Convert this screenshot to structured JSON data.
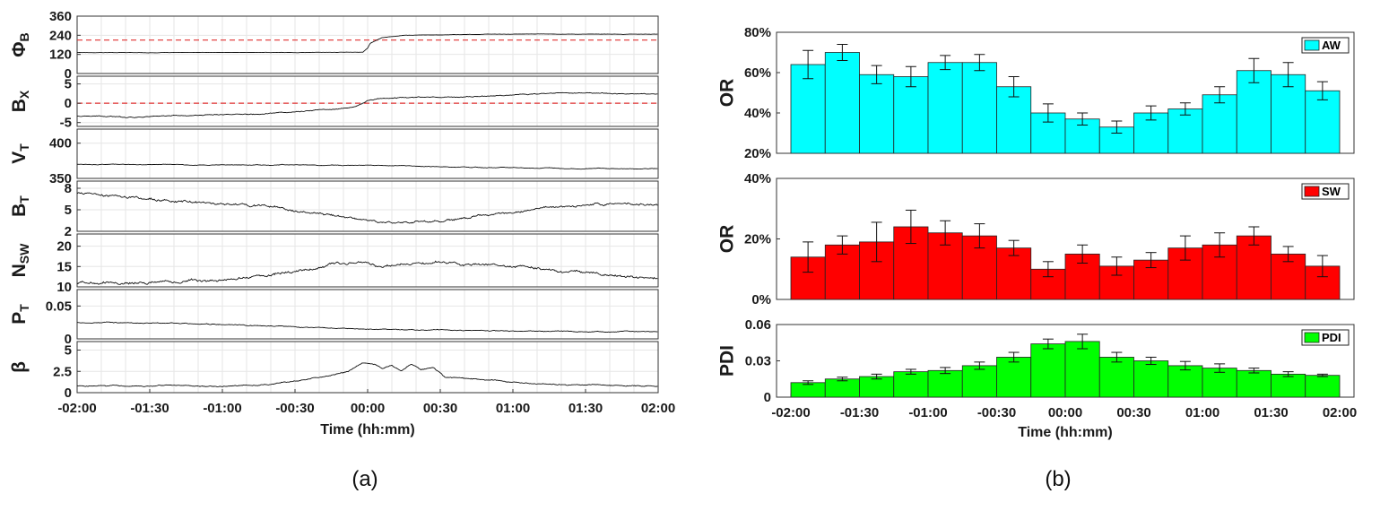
{
  "panel_labels": [
    "(a)",
    "(b)"
  ],
  "chart_data": [
    {
      "type": "line",
      "panel": "(a)",
      "xlabel": "Time (hh:mm)",
      "x_range_minutes": [
        -120,
        120
      ],
      "x_ticks": [
        "-02:00",
        "-01:30",
        "-01:00",
        "-00:30",
        "00:00",
        "00:30",
        "01:00",
        "01:30",
        "02:00"
      ],
      "grid": true,
      "subplots": [
        {
          "ylabel": "Φ",
          "ysub": "B",
          "ylim": [
            0,
            360
          ],
          "yticks": [
            "0",
            "120",
            "240",
            "360"
          ],
          "ref_line": 210,
          "ref_color": "#e03030",
          "values": [
            [
              -120,
              132
            ],
            [
              -90,
              131
            ],
            [
              -60,
              132
            ],
            [
              -30,
              132
            ],
            [
              -2,
              134
            ],
            [
              0,
              160
            ],
            [
              1,
              190
            ],
            [
              3,
              205
            ],
            [
              6,
              225
            ],
            [
              15,
              240
            ],
            [
              40,
              245
            ],
            [
              70,
              248
            ],
            [
              100,
              246
            ],
            [
              120,
              247
            ]
          ]
        },
        {
          "ylabel": "B",
          "ysub": "X",
          "ylim": [
            -6,
            7
          ],
          "yticks": [
            "-5",
            "0",
            "5"
          ],
          "ref_line": 0,
          "ref_color": "#e03030",
          "values": [
            [
              -120,
              -3.3
            ],
            [
              -100,
              -3.6
            ],
            [
              -80,
              -3.2
            ],
            [
              -60,
              -3.0
            ],
            [
              -40,
              -2.5
            ],
            [
              -20,
              -1.8
            ],
            [
              -5,
              -1.0
            ],
            [
              0,
              0.6
            ],
            [
              5,
              1.2
            ],
            [
              20,
              1.6
            ],
            [
              40,
              1.6
            ],
            [
              60,
              2.2
            ],
            [
              80,
              2.6
            ],
            [
              100,
              2.6
            ],
            [
              120,
              2.3
            ]
          ]
        },
        {
          "ylabel": "V",
          "ysub": "T",
          "ylim": [
            350,
            420
          ],
          "yticks": [
            "350",
            "400"
          ],
          "ref_line": null,
          "values": [
            [
              -120,
              370
            ],
            [
              -90,
              369.5
            ],
            [
              -60,
              369
            ],
            [
              -30,
              369.5
            ],
            [
              -10,
              368.5
            ],
            [
              15,
              368
            ],
            [
              35,
              366
            ],
            [
              70,
              365
            ],
            [
              100,
              364
            ],
            [
              120,
              364
            ]
          ]
        },
        {
          "ylabel": "B",
          "ysub": "T",
          "ylim": [
            2,
            9
          ],
          "yticks": [
            "2",
            "5",
            "8"
          ],
          "ref_line": null,
          "values": [
            [
              -120,
              7.3
            ],
            [
              -100,
              6.8
            ],
            [
              -80,
              6.2
            ],
            [
              -60,
              5.8
            ],
            [
              -40,
              5.5
            ],
            [
              -30,
              4.8
            ],
            [
              -15,
              4.2
            ],
            [
              0,
              3.5
            ],
            [
              15,
              3.2
            ],
            [
              30,
              3.4
            ],
            [
              50,
              4.2
            ],
            [
              75,
              5.2
            ],
            [
              100,
              5.9
            ],
            [
              120,
              5.7
            ]
          ]
        },
        {
          "ylabel": "N",
          "ysub": "SW",
          "ylim": [
            10,
            23
          ],
          "yticks": [
            "10",
            "15",
            "20"
          ],
          "ref_line": null,
          "values": [
            [
              -120,
              11
            ],
            [
              -90,
              11.2
            ],
            [
              -60,
              11.8
            ],
            [
              -40,
              12.8
            ],
            [
              -20,
              15
            ],
            [
              -5,
              15.8
            ],
            [
              0,
              16
            ],
            [
              5,
              14.8
            ],
            [
              15,
              15.8
            ],
            [
              30,
              16
            ],
            [
              45,
              15.5
            ],
            [
              60,
              15.2
            ],
            [
              80,
              14
            ],
            [
              100,
              13
            ],
            [
              120,
              12
            ]
          ]
        },
        {
          "ylabel": "P",
          "ysub": "T",
          "ylim": [
            0,
            0.075
          ],
          "yticks": [
            "0",
            "0.05"
          ],
          "ref_line": null,
          "values": [
            [
              -120,
              0.025
            ],
            [
              -90,
              0.024
            ],
            [
              -60,
              0.022
            ],
            [
              -30,
              0.018
            ],
            [
              0,
              0.015
            ],
            [
              30,
              0.013
            ],
            [
              60,
              0.012
            ],
            [
              90,
              0.011
            ],
            [
              120,
              0.011
            ]
          ]
        },
        {
          "ylabel": "β",
          "ysub": "",
          "ylim": [
            0,
            6
          ],
          "yticks": [
            "0",
            "2.5",
            "5"
          ],
          "ref_line": null,
          "values": [
            [
              -120,
              0.8
            ],
            [
              -90,
              0.8
            ],
            [
              -60,
              0.8
            ],
            [
              -40,
              1.0
            ],
            [
              -20,
              1.8
            ],
            [
              -8,
              2.4
            ],
            [
              -2,
              3.5
            ],
            [
              3,
              3.3
            ],
            [
              6,
              2.8
            ],
            [
              10,
              3.2
            ],
            [
              14,
              2.6
            ],
            [
              18,
              3.3
            ],
            [
              22,
              2.7
            ],
            [
              27,
              3.0
            ],
            [
              32,
              1.8
            ],
            [
              45,
              1.6
            ],
            [
              60,
              1.2
            ],
            [
              90,
              0.9
            ],
            [
              120,
              0.8
            ]
          ]
        }
      ]
    },
    {
      "type": "bar",
      "panel": "(b)",
      "xlabel": "Time (hh:mm)",
      "x_range_minutes": [
        -120,
        120
      ],
      "x_ticks": [
        "-02:00",
        "-01:30",
        "-01:00",
        "-00:30",
        "00:00",
        "00:30",
        "01:00",
        "01:30",
        "02:00"
      ],
      "bin_centers_minutes": [
        -112.5,
        -97.5,
        -82.5,
        -67.5,
        -52.5,
        -37.5,
        -22.5,
        -7.5,
        7.5,
        22.5,
        37.5,
        52.5,
        67.5,
        82.5,
        97.5,
        112.5
      ],
      "subplots": [
        {
          "ylabel": "OR",
          "legend": "AW",
          "color": "#00ffff",
          "ylim": [
            20,
            80
          ],
          "yticks": [
            "20%",
            "40%",
            "60%",
            "80%"
          ],
          "values": [
            64,
            70,
            59,
            58,
            65,
            65,
            53,
            40,
            37,
            33,
            40,
            42,
            49,
            61,
            59,
            51
          ],
          "errors": [
            7,
            4,
            4.5,
            5,
            3.5,
            4,
            5,
            4.5,
            3,
            3,
            3.5,
            3,
            4,
            6,
            6,
            4.5
          ]
        },
        {
          "ylabel": "OR",
          "legend": "SW",
          "color": "#ff0000",
          "ylim": [
            0,
            40
          ],
          "yticks": [
            "0%",
            "20%",
            "40%"
          ],
          "values": [
            14,
            18,
            19,
            24,
            22,
            21,
            17,
            10,
            15,
            11,
            13,
            17,
            18,
            21,
            15,
            11
          ],
          "errors": [
            5,
            3,
            6.5,
            5.5,
            4,
            4,
            2.5,
            2.5,
            3,
            3,
            2.5,
            4,
            4,
            3,
            2.5,
            3.5
          ]
        },
        {
          "ylabel": "PDI",
          "legend": "PDI",
          "color": "#00ff00",
          "ylim": [
            0,
            0.06
          ],
          "yticks": [
            "0",
            "0.03",
            "0.06"
          ],
          "values": [
            0.012,
            0.015,
            0.017,
            0.021,
            0.022,
            0.026,
            0.033,
            0.044,
            0.046,
            0.033,
            0.03,
            0.026,
            0.024,
            0.022,
            0.019,
            0.018
          ],
          "errors": [
            0.0015,
            0.0015,
            0.002,
            0.002,
            0.0025,
            0.003,
            0.004,
            0.004,
            0.006,
            0.004,
            0.003,
            0.0035,
            0.0035,
            0.002,
            0.002,
            0.001
          ]
        }
      ]
    }
  ]
}
